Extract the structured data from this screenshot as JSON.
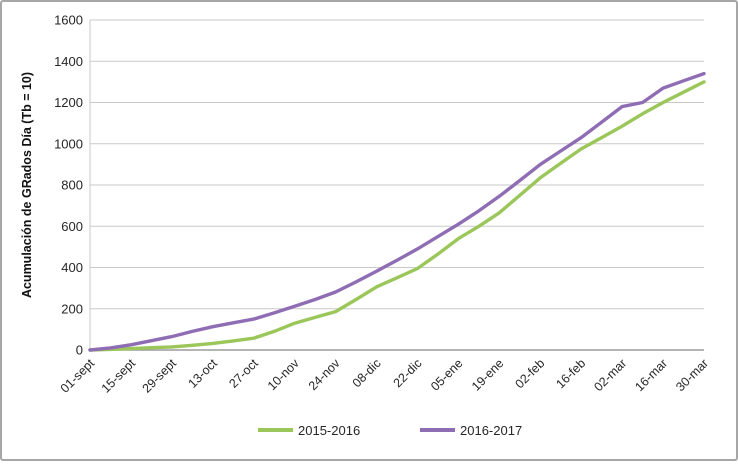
{
  "window": {
    "border_color": "#a6a6a6",
    "background": "#ffffff"
  },
  "chart_data": {
    "type": "line",
    "title": "",
    "ylabel": "Acumulación de GRados Día (Tb = 10)",
    "xlabel": "",
    "ylim": [
      0,
      1600
    ],
    "y_tick_step": 200,
    "y_ticks": [
      0,
      200,
      400,
      600,
      800,
      1000,
      1200,
      1400,
      1600
    ],
    "x_tick_labels": [
      "01-sept",
      "15-sept",
      "29-sept",
      "13-oct",
      "27-oct",
      "10-nov",
      "24-nov",
      "08-dic",
      "22-dic",
      "05-ene",
      "19-ene",
      "02-feb",
      "16-feb",
      "02-mar",
      "16-mar",
      "30-mar"
    ],
    "points_per_series": 31,
    "x_note": "values sampled weekly from 01-sept to 30-mar; every 2nd point falls on a labeled 14-day tick",
    "grid": "horizontal-only",
    "legend_position": "bottom-center",
    "series": [
      {
        "name": "2015-2016",
        "color": "#9bc65a",
        "values": [
          0,
          3,
          7,
          11,
          15,
          23,
          32,
          44,
          57,
          90,
          130,
          158,
          186,
          245,
          306,
          350,
          395,
          465,
          540,
          600,
          665,
          750,
          835,
          905,
          975,
          1030,
          1085,
          1145,
          1200,
          1250,
          1300
        ]
      },
      {
        "name": "2016-2017",
        "color": "#8f6db4",
        "values": [
          0,
          10,
          25,
          45,
          65,
          90,
          113,
          132,
          150,
          180,
          212,
          245,
          281,
          330,
          382,
          435,
          490,
          550,
          610,
          675,
          745,
          822,
          900,
          965,
          1030,
          1105,
          1180,
          1200,
          1270,
          1305,
          1340
        ]
      }
    ],
    "colors": {
      "gridline": "#c9c9c9",
      "axis_line": "#9c9c9c",
      "tick_text": "#262626",
      "axis_title_text": "#111111"
    }
  }
}
